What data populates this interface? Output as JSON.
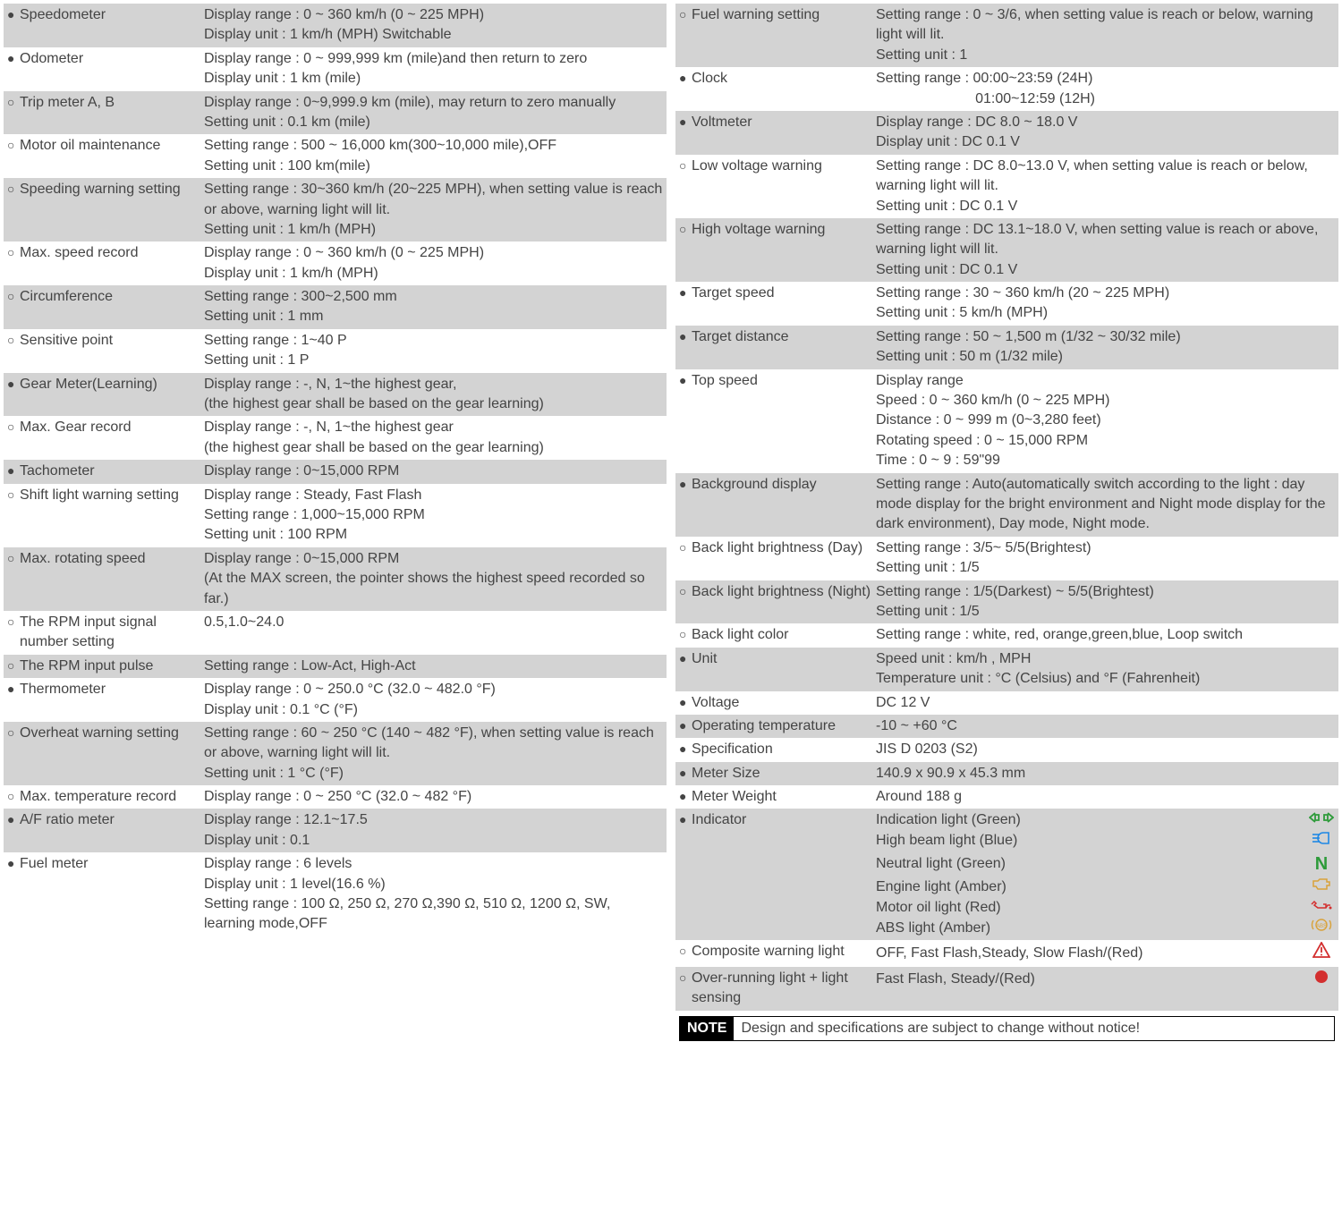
{
  "colors": {
    "shade_bg": "#d3d3d3",
    "text": "#444444",
    "green": "#2e9b3a",
    "blue": "#1e88e5",
    "amber": "#d9a23a",
    "red": "#d32f2f",
    "black": "#000000"
  },
  "left": [
    {
      "bullet": "●",
      "shade": true,
      "label": "Speedometer",
      "desc": [
        "Display range : 0 ~ 360 km/h (0 ~ 225 MPH)",
        "Display unit : 1 km/h (MPH) Switchable"
      ]
    },
    {
      "bullet": "●",
      "shade": false,
      "label": "Odometer",
      "desc": [
        "Display range : 0 ~ 999,999 km (mile)and then return to zero",
        "Display unit : 1 km (mile)"
      ]
    },
    {
      "bullet": "○",
      "shade": true,
      "label": "Trip meter A, B",
      "desc": [
        "Display range : 0~9,999.9 km (mile), may return to zero manually",
        "Setting unit : 0.1 km (mile)"
      ]
    },
    {
      "bullet": "○",
      "shade": false,
      "label": "Motor oil maintenance",
      "desc": [
        "Setting range : 500 ~ 16,000 km(300~10,000 mile),OFF",
        "Setting unit : 100 km(mile)"
      ]
    },
    {
      "bullet": "○",
      "shade": true,
      "label": "Speeding warning setting",
      "desc": [
        "Setting range : 30~360 km/h (20~225 MPH), when setting value is reach or above, warning light will lit.",
        "Setting unit : 1 km/h (MPH)"
      ]
    },
    {
      "bullet": "○",
      "shade": false,
      "label": "Max. speed record",
      "desc": [
        "Display range : 0 ~ 360 km/h (0 ~ 225 MPH)",
        "Display unit : 1 km/h (MPH)"
      ]
    },
    {
      "bullet": "○",
      "shade": true,
      "label": "Circumference",
      "desc": [
        "Setting range : 300~2,500 mm",
        "Setting unit : 1 mm"
      ]
    },
    {
      "bullet": "○",
      "shade": false,
      "label": "Sensitive point",
      "desc": [
        "Setting range : 1~40 P",
        "Setting unit : 1 P"
      ]
    },
    {
      "bullet": "●",
      "shade": true,
      "label": "Gear Meter(Learning)",
      "desc": [
        "Display range : -, N, 1~the highest gear,",
        "(the highest gear shall be based on the gear learning)"
      ]
    },
    {
      "bullet": "○",
      "shade": false,
      "label": "Max. Gear record",
      "desc": [
        "Display range : -, N, 1~the highest gear",
        "(the highest gear shall be based on the gear learning)"
      ]
    },
    {
      "bullet": "●",
      "shade": true,
      "label": "Tachometer",
      "desc": [
        "Display range : 0~15,000 RPM"
      ]
    },
    {
      "bullet": "○",
      "shade": false,
      "label": "Shift light warning setting",
      "desc": [
        "Display range : Steady, Fast Flash",
        "Setting range : 1,000~15,000 RPM",
        "Setting unit : 100 RPM"
      ]
    },
    {
      "bullet": "○",
      "shade": true,
      "label": "Max. rotating speed",
      "desc": [
        "Display range : 0~15,000 RPM",
        "(At the MAX screen, the pointer shows the highest speed recorded so far.)"
      ]
    },
    {
      "bullet": "○",
      "shade": false,
      "label": "The RPM input  signal number setting",
      "desc": [
        "0.5,1.0~24.0"
      ]
    },
    {
      "bullet": "○",
      "shade": true,
      "label": "The RPM input pulse",
      "desc": [
        "Setting range : Low-Act, High-Act"
      ]
    },
    {
      "bullet": "●",
      "shade": false,
      "label": "Thermometer",
      "desc": [
        "Display range : 0 ~ 250.0 °C (32.0 ~ 482.0 °F)",
        "Display unit : 0.1 °C (°F)"
      ]
    },
    {
      "bullet": "○",
      "shade": true,
      "label": "Overheat warning setting",
      "desc": [
        "Setting range : 60 ~ 250 °C (140 ~ 482 °F), when setting value is reach or above, warning light will lit.",
        "Setting unit : 1 °C (°F)"
      ]
    },
    {
      "bullet": "○",
      "shade": false,
      "label": "Max. temperature record",
      "desc": [
        "Display range : 0 ~ 250 °C (32.0 ~ 482 °F)"
      ]
    },
    {
      "bullet": "●",
      "shade": true,
      "label": "A/F ratio meter",
      "desc": [
        "Display range : 12.1~17.5",
        "Display unit : 0.1"
      ]
    },
    {
      "bullet": "●",
      "shade": false,
      "label": "Fuel meter",
      "desc": [
        "Display range : 6 levels",
        "Display unit : 1 level(16.6 %)",
        "Setting range : 100 Ω, 250 Ω, 270 Ω,390 Ω, 510 Ω, 1200 Ω, SW, learning mode,OFF"
      ]
    }
  ],
  "right": [
    {
      "bullet": "○",
      "shade": true,
      "label": "Fuel warning setting",
      "desc": [
        "Setting range : 0 ~ 3/6, when setting value is reach or below, warning light will lit.",
        "Setting unit : 1"
      ]
    },
    {
      "bullet": "●",
      "shade": false,
      "label": "Clock",
      "desc": [
        "Setting range : 00:00~23:59 (24H)",
        "                         01:00~12:59 (12H)"
      ]
    },
    {
      "bullet": "●",
      "shade": true,
      "label": "Voltmeter",
      "desc": [
        "Display range : DC 8.0 ~ 18.0 V",
        "Display unit : DC 0.1 V"
      ]
    },
    {
      "bullet": "○",
      "shade": false,
      "label": "Low voltage warning",
      "desc": [
        "Setting range : DC 8.0~13.0 V, when setting value is reach or below, warning light will lit.",
        "Setting unit : DC 0.1 V"
      ]
    },
    {
      "bullet": "○",
      "shade": true,
      "label": "High voltage warning",
      "desc": [
        "Setting range : DC 13.1~18.0 V, when setting value is reach or above, warning light will lit.",
        "Setting unit : DC 0.1 V"
      ]
    },
    {
      "bullet": "●",
      "shade": false,
      "label": "Target speed",
      "desc": [
        "Setting range : 30 ~ 360 km/h (20 ~ 225 MPH)",
        "Setting unit : 5 km/h (MPH)"
      ]
    },
    {
      "bullet": "●",
      "shade": true,
      "label": "Target distance",
      "desc": [
        "Setting range : 50 ~ 1,500 m (1/32 ~ 30/32 mile)",
        "Setting unit : 50 m (1/32 mile)"
      ]
    },
    {
      "bullet": "●",
      "shade": false,
      "label": "Top speed",
      "desc": [
        "Display range",
        "Speed : 0 ~ 360 km/h (0 ~ 225 MPH)",
        "Distance : 0 ~ 999 m (0~3,280 feet)",
        "Rotating speed : 0 ~ 15,000 RPM",
        "Time : 0 ~ 9 : 59\"99"
      ]
    },
    {
      "bullet": "●",
      "shade": true,
      "label": "Background display",
      "desc": [
        "Setting range : Auto(automatically switch according to the light : day mode display for the bright environment and Night mode display for the dark environment), Day mode, Night mode."
      ]
    },
    {
      "bullet": "○",
      "shade": false,
      "label": "Back light brightness (Day)",
      "desc": [
        "Setting range : 3/5~ 5/5(Brightest)",
        "Setting unit : 1/5"
      ]
    },
    {
      "bullet": "○",
      "shade": true,
      "label": "Back light brightness (Night)",
      "desc": [
        "Setting range : 1/5(Darkest) ~ 5/5(Brightest)",
        "Setting unit : 1/5"
      ]
    },
    {
      "bullet": "○",
      "shade": false,
      "label": "Back light color",
      "desc": [
        "Setting range : white, red, orange,green,blue, Loop switch"
      ]
    },
    {
      "bullet": "●",
      "shade": true,
      "label": "Unit",
      "desc": [
        "Speed unit : km/h , MPH",
        "Temperature unit : °C (Celsius) and °F (Fahrenheit)"
      ]
    },
    {
      "bullet": "●",
      "shade": false,
      "label": "Voltage",
      "desc": [
        "DC 12 V"
      ]
    },
    {
      "bullet": "●",
      "shade": true,
      "label": "Operating temperature",
      "desc": [
        "-10 ~ +60 °C"
      ]
    },
    {
      "bullet": "●",
      "shade": false,
      "label": "Specification",
      "desc": [
        "JIS D 0203 (S2)"
      ]
    },
    {
      "bullet": "●",
      "shade": true,
      "label": "Meter Size",
      "desc": [
        "140.9 x 90.9 x 45.3 mm"
      ]
    },
    {
      "bullet": "●",
      "shade": false,
      "label": "Meter Weight",
      "desc": [
        "Around 188 g"
      ]
    }
  ],
  "indicator": {
    "bullet": "●",
    "shade": true,
    "label": "Indicator",
    "lines": [
      {
        "text": "Indication light (Green)",
        "icon": "turn-signal",
        "color": "#2e9b3a"
      },
      {
        "text": "High beam light (Blue)",
        "icon": "high-beam",
        "color": "#1e88e5"
      },
      {
        "text": "Neutral light (Green)",
        "icon": "neutral",
        "color": "#2e9b3a"
      },
      {
        "text": "Engine light (Amber)",
        "icon": "engine",
        "color": "#d9a23a"
      },
      {
        "text": "Motor oil light (Red)",
        "icon": "oil",
        "color": "#d32f2f"
      },
      {
        "text": "ABS light (Amber)",
        "icon": "abs",
        "color": "#d9a23a"
      }
    ]
  },
  "composite": {
    "bullet": "○",
    "shade": false,
    "label": "Composite warning light",
    "text": "OFF, Fast Flash,Steady, Slow Flash/(Red)",
    "icon": "warn-triangle",
    "color": "#d32f2f"
  },
  "overrun": {
    "bullet": "○",
    "shade": true,
    "label": "Over-running light + light sensing",
    "text": "Fast Flash, Steady/(Red)",
    "icon": "dot",
    "color": "#d32f2f"
  },
  "note": {
    "tag": "NOTE",
    "text": "Design and specifications are subject to change without notice!"
  }
}
